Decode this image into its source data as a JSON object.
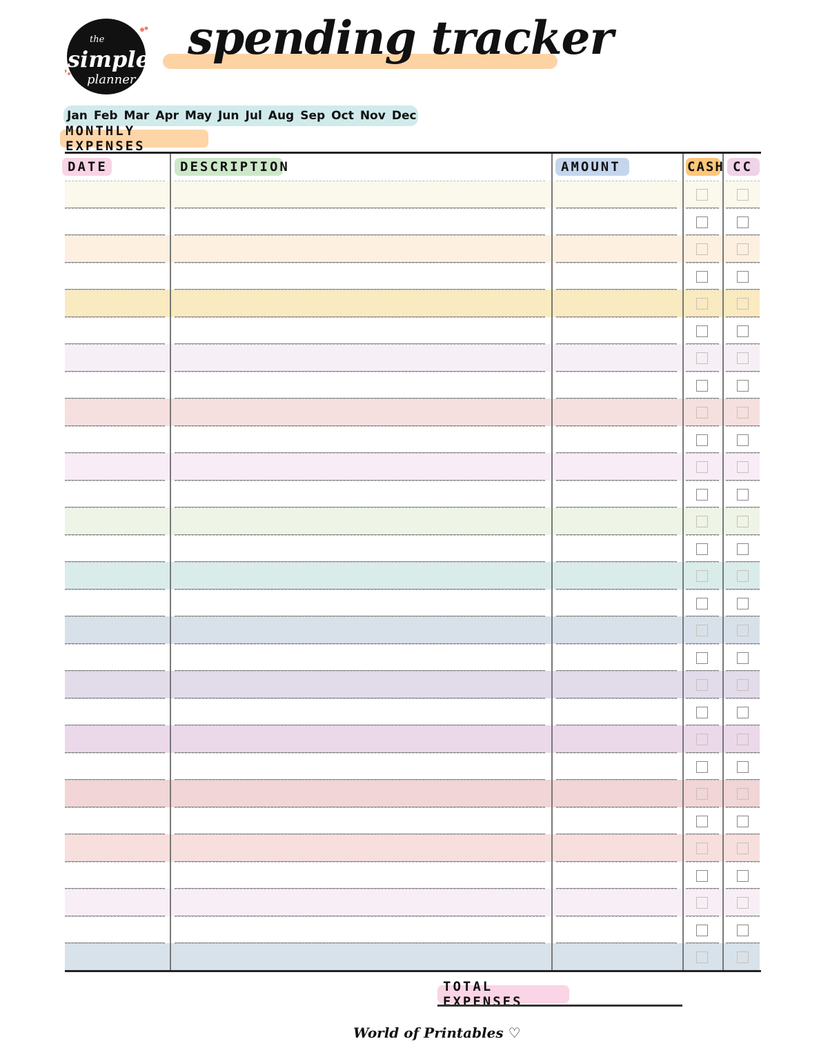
{
  "logo": {
    "text_top": "the",
    "text_mid": "simple",
    "text_bottom": "planner"
  },
  "title": "spending tracker",
  "months": [
    "Jan",
    "Feb",
    "Mar",
    "Apr",
    "May",
    "Jun",
    "Jul",
    "Aug",
    "Sep",
    "Oct",
    "Nov",
    "Dec"
  ],
  "section_label": "MONTHLY EXPENSES",
  "columns": {
    "date": "DATE",
    "description": "DESCRIPTION",
    "amount": "AMOUNT",
    "cash": "CASH",
    "cc": "CC"
  },
  "row_colors": [
    "#fbf8ec",
    "#ffffff",
    "#fdf0e0",
    "#ffffff",
    "#f9eac0",
    "#ffffff",
    "#f7eff6",
    "#ffffff",
    "#f6dfdf",
    "#ffffff",
    "#f8edf6",
    "#ffffff",
    "#eef4e6",
    "#ffffff",
    "#d9ecea",
    "#ffffff",
    "#d8e1ea",
    "#ffffff",
    "#e2dbea",
    "#ffffff",
    "#ebd9ea",
    "#ffffff",
    "#f1d5d7",
    "#ffffff",
    "#f7dfdd",
    "#ffffff",
    "#f8eff6",
    "#ffffff",
    "#d8e2ea"
  ],
  "total_label": "TOTAL EXPENSES",
  "footer": "World of Printables ♡"
}
